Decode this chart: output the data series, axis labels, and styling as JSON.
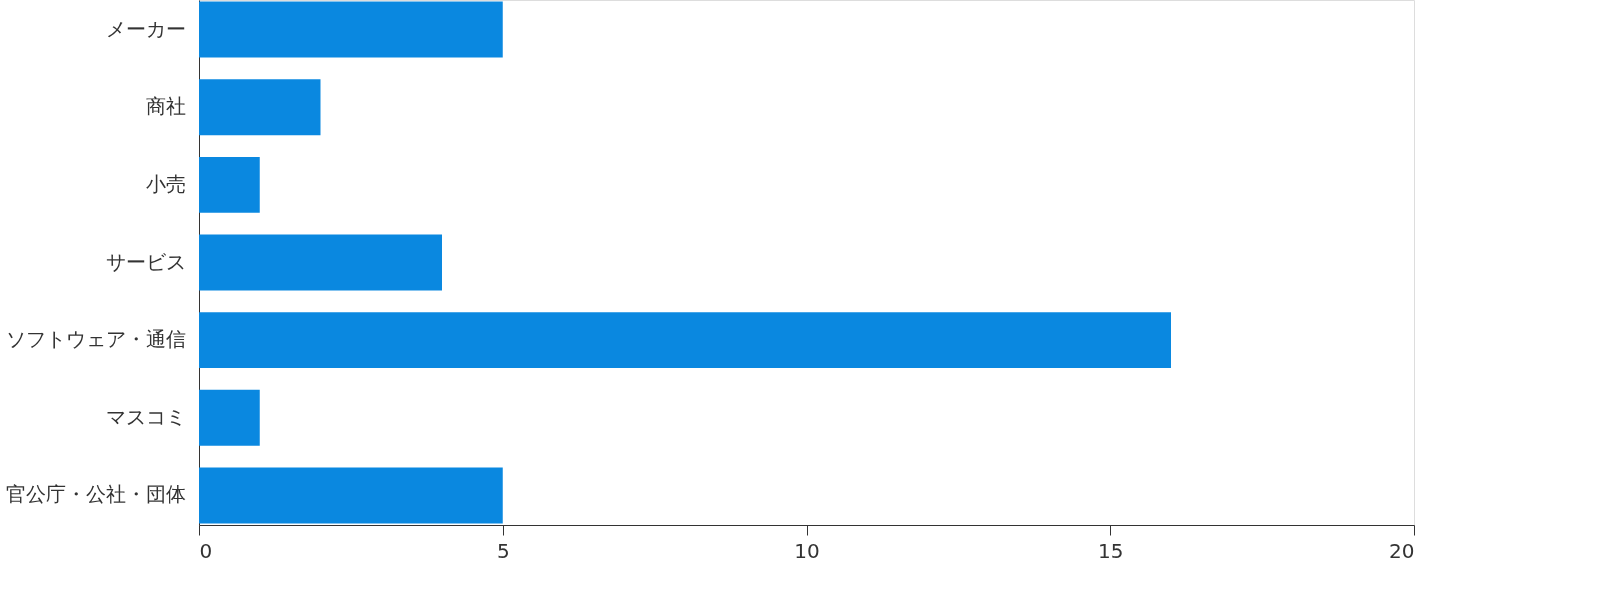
{
  "chart_data": {
    "type": "bar",
    "orientation": "horizontal",
    "categories": [
      "メーカー",
      "商社",
      "小売",
      "サービス",
      "ソフトウェア・通信",
      "マスコミ",
      "官公庁・公社・団体"
    ],
    "values": [
      5,
      2,
      1,
      4,
      16,
      1,
      5
    ],
    "color": "#0a88e0",
    "xlim": [
      0,
      20
    ],
    "xticks": [
      0,
      5,
      10,
      15,
      20
    ],
    "grid": false
  }
}
